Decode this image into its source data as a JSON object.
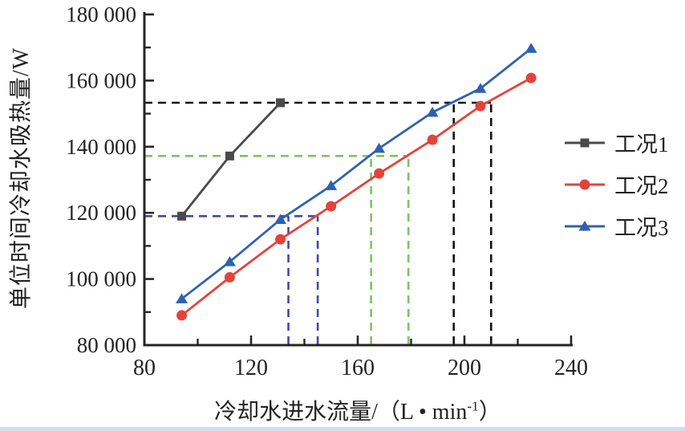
{
  "page": {
    "background": "#ffffff",
    "bottom_strip_color": "#cfdeeb"
  },
  "axis": {
    "color": "#262626",
    "tick_label_color": "#222222"
  },
  "chart_data": {
    "type": "line",
    "title": "",
    "xlabel": "冷却水进水流量/（L • min⁻¹）",
    "xlabel_parts": {
      "main": "冷却水进水流量/（L • min",
      "sup": "-1",
      "close": "）"
    },
    "ylabel": "单位时间冷却水吸热量/W",
    "xlim": [
      80,
      240
    ],
    "ylim": [
      80000,
      180000
    ],
    "x_major_ticks": [
      80,
      120,
      160,
      200,
      240
    ],
    "x_minor_ticks": [
      100,
      140,
      180,
      220
    ],
    "y_major_ticks": [
      80000,
      100000,
      120000,
      140000,
      160000,
      180000
    ],
    "y_major_tick_labels": [
      "80 000",
      "100 000",
      "120 000",
      "140 000",
      "160 000",
      "180 000"
    ],
    "y_minor_ticks": [
      90000,
      110000,
      130000,
      150000,
      170000
    ],
    "grid": false,
    "legend_position": "right",
    "series": [
      {
        "name": "工况1",
        "color": "#4a4a4a",
        "marker": "square",
        "points": [
          [
            94,
            119000
          ],
          [
            112,
            137200
          ],
          [
            131,
            153300
          ]
        ]
      },
      {
        "name": "工况2",
        "color": "#e2443b",
        "marker": "circle",
        "points": [
          [
            94,
            89000
          ],
          [
            112,
            100500
          ],
          [
            131,
            112000
          ],
          [
            150,
            122000
          ],
          [
            168,
            131900
          ],
          [
            188,
            142100
          ],
          [
            206,
            152300
          ],
          [
            225,
            160800
          ]
        ]
      },
      {
        "name": "工况3",
        "color": "#2e62b1",
        "marker": "triangle",
        "points": [
          [
            94,
            94000
          ],
          [
            112,
            105200
          ],
          [
            131,
            118000
          ],
          [
            150,
            128200
          ],
          [
            168,
            139500
          ],
          [
            188,
            150400
          ],
          [
            206,
            157600
          ],
          [
            225,
            169700
          ]
        ]
      }
    ],
    "reference_lines": [
      {
        "color": "#111111",
        "h_value": 153300,
        "h_x_end": 210,
        "v_x": [
          196,
          210
        ]
      },
      {
        "color": "#7cc463",
        "h_value": 137200,
        "h_x_end": 179,
        "v_x": [
          165,
          179
        ]
      },
      {
        "color": "#4149ab",
        "h_value": 119000,
        "h_x_end": 145,
        "v_x": [
          134,
          145
        ]
      }
    ]
  },
  "legend": {
    "items": [
      {
        "label": "工况1",
        "color": "#4a4a4a",
        "marker": "square"
      },
      {
        "label": "工况2",
        "color": "#e2443b",
        "marker": "circle"
      },
      {
        "label": "工况3",
        "color": "#2e62b1",
        "marker": "triangle"
      }
    ]
  }
}
